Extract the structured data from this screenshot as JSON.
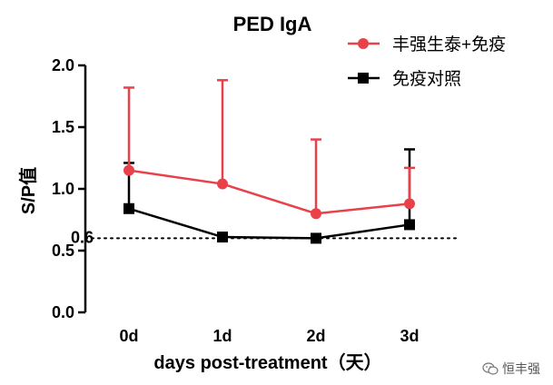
{
  "chart_data": {
    "type": "line",
    "title": "PED IgA",
    "xlabel": "days post-treatment（天）",
    "ylabel": "S/P值",
    "categories": [
      "0d",
      "1d",
      "2d",
      "3d"
    ],
    "ylim": [
      0,
      2.0
    ],
    "yticks": [
      0.0,
      0.5,
      1.0,
      1.5,
      2.0
    ],
    "ytick_labels": [
      "0.0",
      "0.5",
      "1.0",
      "1.5",
      "2.0"
    ],
    "reference_line": {
      "value": 0.6,
      "label": "0.6",
      "style": "dotted"
    },
    "legend_position": "top-right",
    "series": [
      {
        "name": "丰强生泰+免疫",
        "color": "#e8414a",
        "marker": "circle",
        "values": [
          1.15,
          1.04,
          0.8,
          0.88
        ],
        "error_upper": [
          1.82,
          1.88,
          1.4,
          1.17
        ]
      },
      {
        "name": "免疫对照",
        "color": "#000000",
        "marker": "square",
        "values": [
          0.84,
          0.61,
          0.6,
          0.71
        ],
        "error_upper": [
          1.21,
          0.61,
          0.6,
          1.32
        ]
      }
    ]
  },
  "watermark": {
    "text": "恒丰强",
    "icon": "wechat-icon"
  }
}
